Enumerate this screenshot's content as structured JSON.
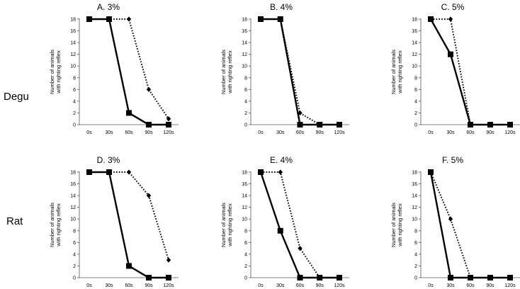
{
  "row_labels": [
    "Degu",
    "Rat"
  ],
  "chart_data": [
    {
      "type": "line",
      "title": "A. 3%",
      "ylabel_lines": [
        "Number of animals",
        "with righting reflex"
      ],
      "categories": [
        "0s",
        "30s",
        "60s",
        "90s",
        "120s"
      ],
      "ylim": [
        0,
        18
      ],
      "yticks": [
        0,
        2,
        4,
        6,
        8,
        10,
        12,
        14,
        16,
        18
      ],
      "series": [
        {
          "name": "solid",
          "style": "solid",
          "marker": "square",
          "values": [
            18,
            18,
            2,
            0,
            0
          ]
        },
        {
          "name": "dotted",
          "style": "dotted",
          "marker": "diamond",
          "values": [
            18,
            18,
            18,
            6,
            1
          ]
        }
      ]
    },
    {
      "type": "line",
      "title": "B. 4%",
      "ylabel_lines": [
        "Number of animals",
        "with righting reflex"
      ],
      "categories": [
        "0s",
        "30s",
        "60s",
        "90s",
        "120s"
      ],
      "ylim": [
        0,
        18
      ],
      "yticks": [
        0,
        2,
        4,
        6,
        8,
        10,
        12,
        14,
        16,
        18
      ],
      "series": [
        {
          "name": "solid",
          "style": "solid",
          "marker": "square",
          "values": [
            18,
            18,
            0,
            0,
            0
          ]
        },
        {
          "name": "dotted",
          "style": "dotted",
          "marker": "diamond",
          "values": [
            18,
            18,
            2,
            0,
            0
          ]
        }
      ]
    },
    {
      "type": "line",
      "title": "C. 5%",
      "ylabel_lines": [
        "Number of animals",
        "with righting reflex"
      ],
      "categories": [
        "0s",
        "30s",
        "60s",
        "90s",
        "120s"
      ],
      "ylim": [
        0,
        18
      ],
      "yticks": [
        0,
        2,
        4,
        6,
        8,
        10,
        12,
        14,
        16,
        18
      ],
      "series": [
        {
          "name": "solid",
          "style": "solid",
          "marker": "square",
          "values": [
            18,
            12,
            0,
            0,
            0
          ]
        },
        {
          "name": "dotted",
          "style": "dotted",
          "marker": "diamond",
          "values": [
            18,
            18,
            0,
            0,
            0
          ]
        }
      ]
    },
    {
      "type": "line",
      "title": "D. 3%",
      "ylabel_lines": [
        "Number of animals",
        "with righting reflex"
      ],
      "categories": [
        "0s",
        "30s",
        "60s",
        "90s",
        "120s"
      ],
      "ylim": [
        0,
        18
      ],
      "yticks": [
        0,
        2,
        4,
        6,
        8,
        10,
        12,
        14,
        16,
        18
      ],
      "series": [
        {
          "name": "solid",
          "style": "solid",
          "marker": "square",
          "values": [
            18,
            18,
            2,
            0,
            0
          ]
        },
        {
          "name": "dotted",
          "style": "dotted",
          "marker": "diamond",
          "values": [
            18,
            18,
            18,
            14,
            3
          ]
        }
      ]
    },
    {
      "type": "line",
      "title": "E. 4%",
      "ylabel_lines": [
        "Number of animals",
        "with righting reflex"
      ],
      "categories": [
        "0s",
        "30s",
        "60s",
        "90s",
        "120s"
      ],
      "ylim": [
        0,
        18
      ],
      "yticks": [
        0,
        2,
        4,
        6,
        8,
        10,
        12,
        14,
        16,
        18
      ],
      "series": [
        {
          "name": "solid",
          "style": "solid",
          "marker": "square",
          "values": [
            18,
            8,
            0,
            0,
            0
          ]
        },
        {
          "name": "dotted",
          "style": "dotted",
          "marker": "diamond",
          "values": [
            18,
            18,
            5,
            0,
            0
          ]
        }
      ]
    },
    {
      "type": "line",
      "title": "F. 5%",
      "ylabel_lines": [
        "Number of animals",
        "with righting reflex"
      ],
      "categories": [
        "0s",
        "30s",
        "60s",
        "90s",
        "120s"
      ],
      "ylim": [
        0,
        18
      ],
      "yticks": [
        0,
        2,
        4,
        6,
        8,
        10,
        12,
        14,
        16,
        18
      ],
      "series": [
        {
          "name": "solid",
          "style": "solid",
          "marker": "square",
          "values": [
            18,
            0,
            0,
            0,
            0
          ]
        },
        {
          "name": "dotted",
          "style": "dotted",
          "marker": "diamond",
          "values": [
            18,
            10,
            0,
            0,
            0
          ]
        }
      ]
    }
  ]
}
